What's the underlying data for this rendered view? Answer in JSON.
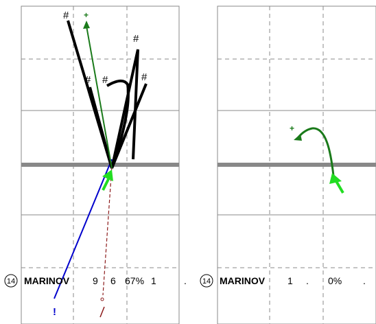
{
  "chart_data": [
    {
      "type": "trajectory",
      "panel": "left",
      "paths": [
        {
          "marker": "#",
          "color": "#000000"
        },
        {
          "marker": "#",
          "color": "#000000"
        },
        {
          "marker": "#",
          "color": "#000000"
        },
        {
          "marker": "#",
          "color": "#000000"
        },
        {
          "marker": "#",
          "color": "#000000"
        },
        {
          "marker": "+",
          "color": "#1a7a1a"
        },
        {
          "marker": "!",
          "color": "#0000cc"
        },
        {
          "marker": "/",
          "color": "#8b1a1a"
        }
      ],
      "stat_row": {
        "badge": "14",
        "name": "MARINOV",
        "values": [
          "9",
          "6",
          "67%",
          "1",
          "."
        ]
      }
    },
    {
      "type": "trajectory",
      "panel": "right",
      "paths": [
        {
          "marker": "+",
          "color": "#1a7a1a"
        }
      ],
      "stat_row": {
        "badge": "14",
        "name": "MARINOV",
        "values": [
          "1",
          ".",
          "0%",
          "."
        ]
      }
    }
  ],
  "colors": {
    "black_path": "#000000",
    "green_path": "#1a7a1a",
    "green_arrow": "#22dd22",
    "blue_path": "#0000cc",
    "red_path": "#8b1a1a",
    "center_band": "#888888",
    "grid": "#888888"
  }
}
